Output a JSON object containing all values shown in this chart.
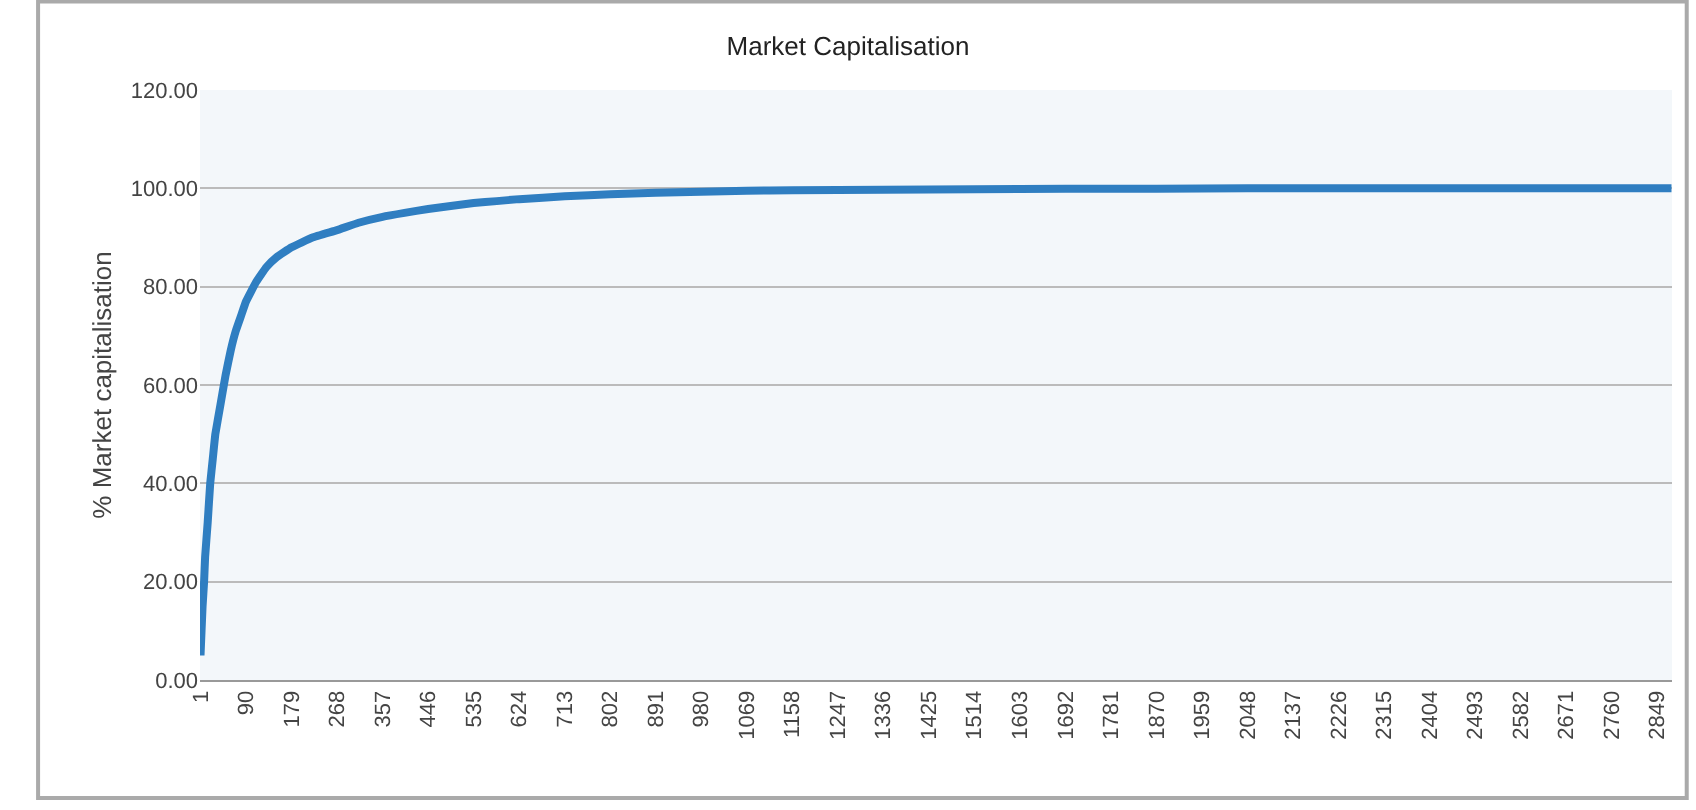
{
  "chart_data": {
    "type": "line",
    "title": "Market Capitalisation",
    "ylabel": "% Market capitalisation",
    "x": [
      1,
      3,
      5,
      8,
      10,
      15,
      20,
      25,
      30,
      40,
      50,
      60,
      70,
      80,
      90,
      110,
      130,
      150,
      179,
      220,
      268,
      310,
      357,
      400,
      446,
      490,
      535,
      580,
      624,
      670,
      713,
      760,
      802,
      891,
      980,
      1069,
      1158,
      1336,
      1514,
      1692,
      1870,
      2048,
      2237,
      2493,
      2760,
      2877
    ],
    "series": [
      {
        "color": "#2f7ec1",
        "values": [
          5,
          10,
          15,
          20,
          25,
          32,
          40,
          45,
          50,
          56,
          62,
          67,
          71,
          74,
          77,
          81,
          84,
          86,
          88,
          90,
          91.5,
          93,
          94.2,
          95,
          95.8,
          96.4,
          97,
          97.4,
          97.8,
          98.1,
          98.4,
          98.6,
          98.8,
          99.1,
          99.3,
          99.5,
          99.6,
          99.7,
          99.8,
          99.9,
          99.9,
          100,
          100,
          100,
          100,
          100
        ]
      }
    ],
    "xlim": [
      0,
      2878
    ],
    "xticks": [
      1,
      90,
      179,
      268,
      357,
      446,
      535,
      624,
      713,
      802,
      891,
      980,
      1069,
      1158,
      1247,
      1336,
      1425,
      1514,
      1603,
      1692,
      1781,
      1870,
      1959,
      2048,
      2137,
      2226,
      2315,
      2404,
      2493,
      2582,
      2671,
      2760,
      2849
    ],
    "ylim": [
      0,
      120
    ],
    "yticks": [
      {
        "value": 0,
        "label": "0.00"
      },
      {
        "value": 20,
        "label": "20.00"
      },
      {
        "value": 40,
        "label": "40.00"
      },
      {
        "value": 60,
        "label": "60.00"
      },
      {
        "value": 80,
        "label": "80.00"
      },
      {
        "value": 100,
        "label": "100.00"
      },
      {
        "value": 120,
        "label": "120.00"
      }
    ],
    "grid": "y",
    "legend": false,
    "line_style": "solid"
  }
}
